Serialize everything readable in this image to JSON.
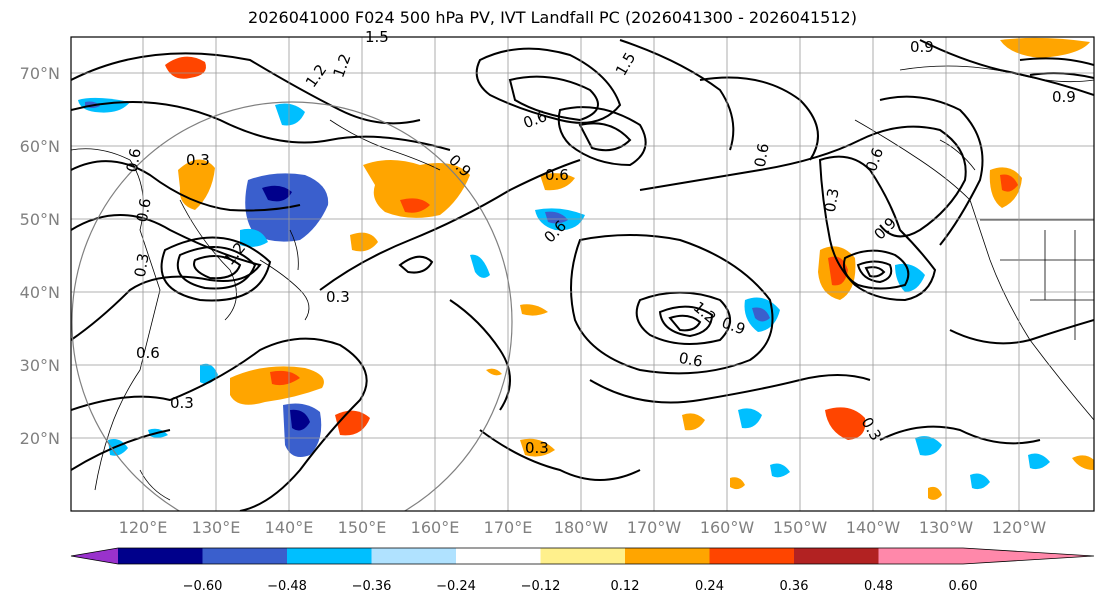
{
  "title": "2026041000 F024 500 hPa PV, IVT Landfall PC (2026041300 - 2026041512)",
  "lat_labels": [
    "70°N",
    "60°N",
    "50°N",
    "40°N",
    "30°N",
    "20°N"
  ],
  "lon_labels": [
    "120°E",
    "130°E",
    "140°E",
    "150°E",
    "160°E",
    "170°E",
    "180°W",
    "170°W",
    "160°W",
    "150°W",
    "140°W",
    "130°W",
    "120°W"
  ],
  "contour_labels": [
    "1.5",
    "1.2",
    "1.2",
    "1.5",
    "0.9",
    "0.9",
    "0.6",
    "0.6",
    "0.3",
    "0.6",
    "0.3",
    "0.3",
    "0.9",
    "0.6",
    "0.3",
    "0.3",
    "0.6",
    "0.6",
    "1.2",
    "0.9",
    "0.6",
    "0.6",
    "0.3",
    "0.9",
    "1.2",
    "0.6",
    "0.3"
  ],
  "colorbar": {
    "ticks": [
      "−0.60",
      "−0.48",
      "−0.36",
      "−0.24",
      "−0.12",
      "0.12",
      "0.24",
      "0.36",
      "0.48",
      "0.60"
    ],
    "colors": [
      "#9932cc",
      "#00008b",
      "#3a5fcd",
      "#00bfff",
      "#b0e2ff",
      "#ffffff",
      "#fff08c",
      "#ffa500",
      "#ff4500",
      "#b22222",
      "#ff88aa"
    ]
  },
  "colors": {
    "grid": "#999999",
    "frame": "#000000",
    "circle": "#808080"
  }
}
